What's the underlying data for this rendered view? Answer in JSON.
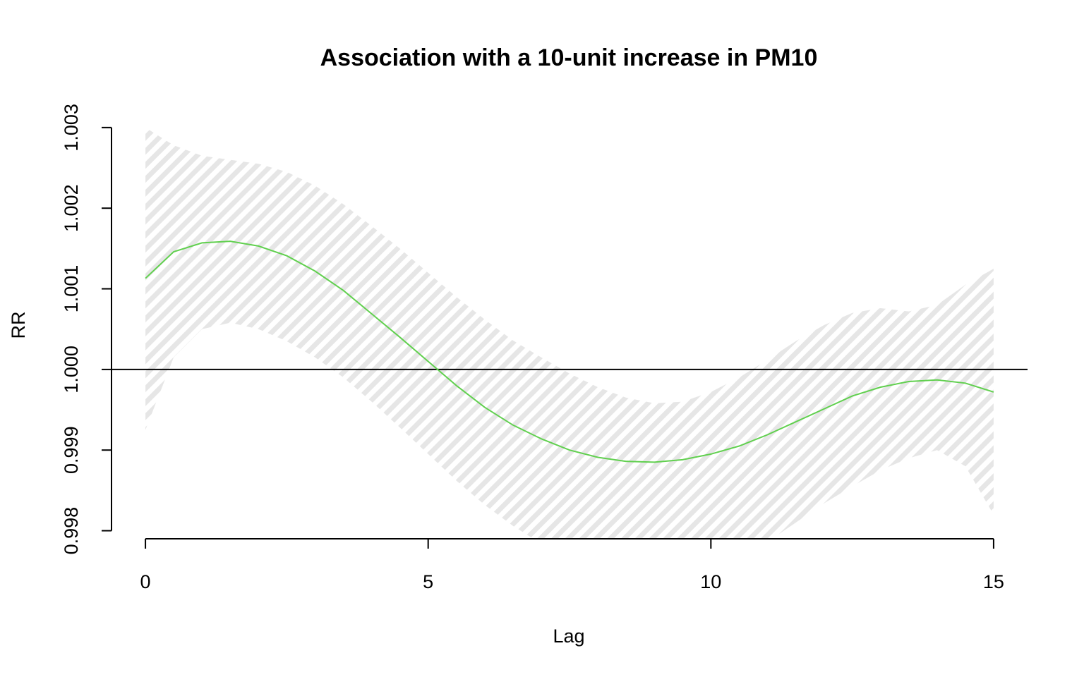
{
  "chart_data": {
    "type": "line",
    "title": "Association with a 10-unit increase in PM10",
    "xlabel": "Lag",
    "ylabel": "RR",
    "xlim": [
      -0.6,
      15.6
    ],
    "ylim": [
      0.9979,
      1.0032
    ],
    "x_ticks": [
      0,
      5,
      10,
      15
    ],
    "x_tick_labels": [
      "0",
      "5",
      "10",
      "15"
    ],
    "y_ticks": [
      0.998,
      0.999,
      1.0,
      1.001,
      1.002,
      1.003
    ],
    "y_tick_labels": [
      "0.998",
      "0.999",
      "1.000",
      "1.001",
      "1.002",
      "1.003"
    ],
    "reference_line": 1.0,
    "line_color": "#61D04F",
    "band_color": "#e6e6e6",
    "x": [
      0,
      0.5,
      1,
      1.5,
      2,
      2.5,
      3,
      3.5,
      4,
      4.5,
      5,
      5.5,
      6,
      6.5,
      7,
      7.5,
      8,
      8.5,
      9,
      9.5,
      10,
      10.5,
      11,
      11.5,
      12,
      12.5,
      13,
      13.5,
      14,
      14.5,
      15
    ],
    "series": [
      {
        "type": "line",
        "values": [
          1.00113,
          1.00146,
          1.00157,
          1.00159,
          1.00153,
          1.00141,
          1.00122,
          1.00098,
          1.00069,
          1.0004,
          1.0001,
          0.9998,
          0.99953,
          0.99931,
          0.99914,
          0.999,
          0.99891,
          0.99886,
          0.99885,
          0.99888,
          0.99895,
          0.99905,
          0.99919,
          0.99935,
          0.99951,
          0.99967,
          0.99978,
          0.99985,
          0.99987,
          0.99983,
          0.99972
        ]
      },
      {
        "type": "band",
        "lower": [
          0.99925,
          1.00015,
          1.0005,
          1.00058,
          1.0005,
          1.00035,
          1.00015,
          0.9999,
          0.9996,
          0.99928,
          0.99895,
          0.99862,
          0.99832,
          0.99806,
          0.99784,
          0.99767,
          0.99755,
          0.99747,
          0.99742,
          0.99743,
          0.9975,
          0.99764,
          0.99786,
          0.9981,
          0.99834,
          0.99855,
          0.99875,
          0.9989,
          0.999,
          0.9988,
          0.9982
        ],
        "upper": [
          1.003,
          1.00278,
          1.00265,
          1.0026,
          1.00255,
          1.00245,
          1.00228,
          1.00205,
          1.00178,
          1.0015,
          1.0012,
          1.0009,
          1.00062,
          1.00036,
          1.00015,
          0.99995,
          0.99978,
          0.99965,
          0.99958,
          0.9996,
          0.99972,
          0.9999,
          1.00012,
          1.00035,
          1.00055,
          1.0007,
          1.00076,
          1.00072,
          1.0008,
          1.00105,
          1.00125
        ]
      }
    ]
  }
}
